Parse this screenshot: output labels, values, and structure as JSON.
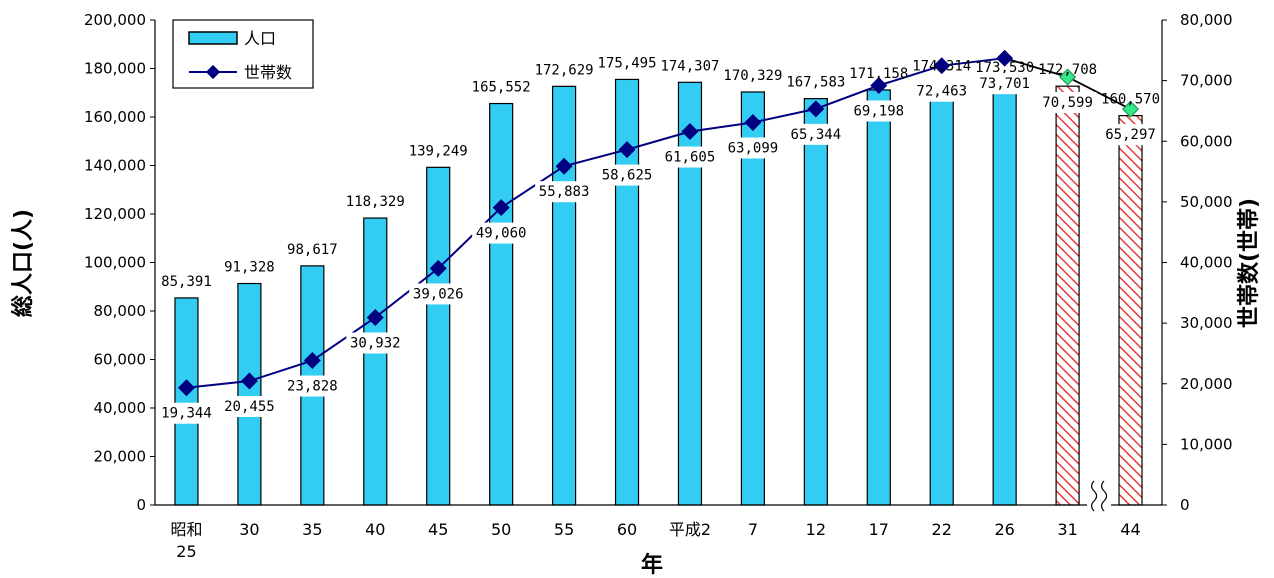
{
  "chart_data": {
    "type": "bar-line",
    "categories": [
      "昭和25",
      "30",
      "35",
      "40",
      "45",
      "50",
      "55",
      "60",
      "平成2",
      "7",
      "12",
      "17",
      "22",
      "26",
      "31",
      "44"
    ],
    "category_lines": [
      [
        "昭和",
        "25"
      ],
      [
        "30"
      ],
      [
        "35"
      ],
      [
        "40"
      ],
      [
        "45"
      ],
      [
        "50"
      ],
      [
        "55"
      ],
      [
        "60"
      ],
      [
        "平成2"
      ],
      [
        "7"
      ],
      [
        "12"
      ],
      [
        "17"
      ],
      [
        "22"
      ],
      [
        "26"
      ],
      [
        "31"
      ],
      [
        "44"
      ]
    ],
    "xlabel": "年",
    "ylabel_left": "総人口(人)",
    "ylabel_right": "世帯数(世帯)",
    "ylim_left": [
      0,
      200000
    ],
    "ylim_right": [
      0,
      80000
    ],
    "left_ticks": [
      "0",
      "20,000",
      "40,000",
      "60,000",
      "80,000",
      "100,000",
      "120,000",
      "140,000",
      "160,000",
      "180,000",
      "200,000"
    ],
    "right_ticks": [
      "0",
      "10,000",
      "20,000",
      "30,000",
      "40,000",
      "50,000",
      "60,000",
      "70,000",
      "80,000"
    ],
    "legend_position": "top-left",
    "series": [
      {
        "name": "人口",
        "kind": "bar",
        "axis": "left",
        "color": "#33CCF2",
        "projected_color": "#E83A3A",
        "projected_from_index": 14,
        "values": [
          85391,
          91328,
          98617,
          118329,
          139249,
          165552,
          172629,
          175495,
          174307,
          170329,
          167583,
          171158,
          174314,
          173530,
          172708,
          160570
        ],
        "labels": [
          "85,391",
          "91,328",
          "98,617",
          "118,329",
          "139,249",
          "165,552",
          "172,629",
          "175,495",
          "174,307",
          "170,329",
          "167,583",
          "171,158",
          "174,314",
          "173,530",
          "172,708",
          "160,570"
        ]
      },
      {
        "name": "世帯数",
        "kind": "line",
        "axis": "right",
        "color": "#000080",
        "projected_color": "#33E88A",
        "projected_from_index": 14,
        "values": [
          19344,
          20455,
          23828,
          30932,
          39026,
          49060,
          55883,
          58625,
          61605,
          63099,
          65344,
          69198,
          72463,
          73701,
          70599,
          65297
        ],
        "labels": [
          "19,344",
          "20,455",
          "23,828",
          "30,932",
          "39,026",
          "49,060",
          "55,883",
          "58,625",
          "61,605",
          "63,099",
          "65,344",
          "69,198",
          "72,463",
          "73,701",
          "70,599",
          "65,297"
        ]
      }
    ],
    "axis_break_between": [
      14,
      15
    ]
  }
}
